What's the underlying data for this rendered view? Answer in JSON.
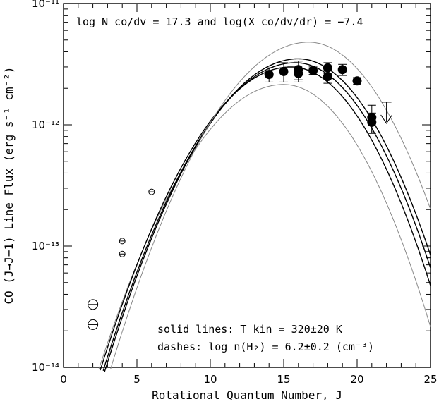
{
  "chart_data": {
    "type": "scatter",
    "title": "",
    "annotation_top": "log N co/dv = 17.3 and log(X co/dv/dr) = −7.4",
    "annotation_solid": "solid lines: T kin = 320±20 K",
    "annotation_dash": "dashes: log n(H₂) = 6.2±0.2 (cm⁻³)",
    "xlabel": "Rotational Quantum Number, J",
    "ylabel": "CO (J→J−1) Line Flux (erg s⁻¹ cm⁻²)",
    "x_ticks": [
      "0",
      "5",
      "10",
      "15",
      "20",
      "25"
    ],
    "y_ticks": [
      "10⁻¹⁴",
      "10⁻¹³",
      "10⁻¹²",
      "10⁻¹¹"
    ],
    "xlim": [
      0,
      25
    ],
    "ylim_log10": [
      -14,
      -11
    ],
    "y_scale": "log",
    "points_large": [
      {
        "J": 14,
        "flux": 2.6e-12,
        "err": 3.5e-13
      },
      {
        "J": 15,
        "flux": 2.75e-12,
        "err": 5e-13
      },
      {
        "J": 16,
        "flux": 2.85e-12,
        "err": 5e-13
      },
      {
        "J": 16,
        "flux": 2.65e-12,
        "err": 4e-13
      },
      {
        "J": 17,
        "flux": 2.8e-12,
        "err": 2e-13
      },
      {
        "J": 18,
        "flux": 2.95e-12,
        "err": 3e-13
      },
      {
        "J": 18,
        "flux": 2.5e-12,
        "err": 3e-13
      },
      {
        "J": 19,
        "flux": 2.85e-12,
        "err": 3e-13
      },
      {
        "J": 20,
        "flux": 2.3e-12,
        "err": 1.5e-13
      },
      {
        "J": 21,
        "flux": 1.15e-12,
        "err": 3e-13
      },
      {
        "J": 21,
        "flux": 1.05e-12,
        "err": 2e-13
      }
    ],
    "points_small": [
      {
        "J": 2,
        "flux": 3.3e-14
      },
      {
        "J": 2,
        "flux": 2.25e-14
      },
      {
        "J": 4,
        "flux": 1.1e-13
      },
      {
        "J": 4,
        "flux": 8.6e-14
      },
      {
        "J": 6,
        "flux": 2.8e-13
      }
    ],
    "upper_limit": {
      "J": 22,
      "flux": 1.2e-12
    },
    "model_series": [
      {
        "peak_J": 15.0,
        "peak_flux": 2.15e-12,
        "style": "thin",
        "color": "#888888"
      },
      {
        "peak_J": 15.5,
        "peak_flux": 3e-12,
        "style": "solid",
        "color": "#000000"
      },
      {
        "peak_J": 15.8,
        "peak_flux": 3.25e-12,
        "style": "solid",
        "color": "#000000"
      },
      {
        "peak_J": 16.0,
        "peak_flux": 3.5e-12,
        "style": "solid",
        "color": "#000000"
      },
      {
        "peak_J": 16.7,
        "peak_flux": 4.8e-12,
        "style": "thin",
        "color": "#888888"
      }
    ]
  }
}
